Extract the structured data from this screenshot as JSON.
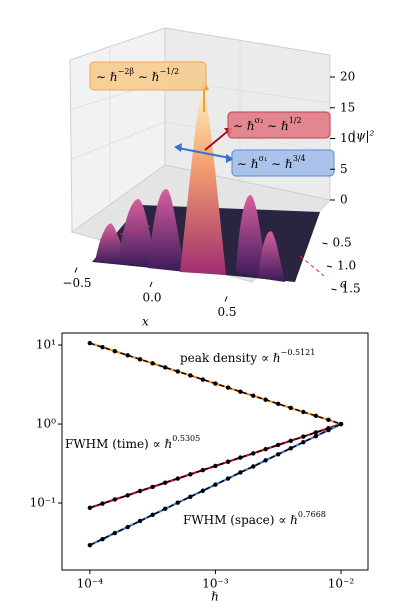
{
  "chart_data": [
    {
      "type": "surface3d",
      "xlabel": "x",
      "ylabel": "a",
      "zlabel": "|ψ|²",
      "xticks": [
        {
          "value": -0.5,
          "label": "−0.5"
        },
        {
          "value": 0,
          "label": "0.0"
        },
        0.5
      ],
      "yticks": [
        0.5,
        {
          "value": 1,
          "label": "1.0"
        },
        1.5
      ],
      "zticks": [
        0,
        5,
        10,
        15,
        20
      ],
      "annotations": [
        {
          "segments": [
            "∼ ℏ",
            "−2β",
            " ∼ ℏ",
            "−1/2"
          ],
          "color": "#f0a040"
        },
        {
          "segments": [
            "∼ ℏ",
            "σ₂",
            " ∼ ℏ",
            "1/2"
          ],
          "color": "#c8283c"
        },
        {
          "segments": [
            "∼ ℏ",
            "σ₁",
            " ∼ ℏ",
            "3/4"
          ],
          "color": "#4a7fd0"
        }
      ]
    },
    {
      "type": "line",
      "log_x": true,
      "log_y": true,
      "xlabel": "ℏ",
      "x": [
        0.0001,
        0.000126,
        0.000158,
        0.0002,
        0.000251,
        0.000316,
        0.000398,
        0.000501,
        0.000631,
        0.000794,
        0.001,
        0.00126,
        0.00158,
        0.002,
        0.00251,
        0.00316,
        0.00398,
        0.00501,
        0.00631,
        0.00794,
        0.01
      ],
      "xlim": [
        6e-05,
        0.0164
      ],
      "ylim": [
        0.0142,
        14.2
      ],
      "xticks": [
        {
          "value": 0.0001,
          "label": "10⁻⁴"
        },
        {
          "value": 0.001,
          "label": "10⁻³"
        },
        {
          "value": 0.01,
          "label": "10⁻²"
        }
      ],
      "yticks": [
        {
          "value": 0.1,
          "label": "10⁻¹"
        },
        {
          "value": 1,
          "label": "10⁰"
        },
        {
          "value": 10,
          "label": "10¹"
        }
      ],
      "marker_color": "#000000",
      "series": [
        {
          "color": "#f39c34",
          "values": [
            10.57,
            9.4,
            8.35,
            7.42,
            6.6,
            5.87,
            5.21,
            4.63,
            4.12,
            3.66,
            3.25,
            2.89,
            2.57,
            2.28,
            2.03,
            1.8,
            1.6,
            1.42,
            1.27,
            1.13,
            1.0
          ]
        },
        {
          "color": "#c8102e",
          "values": [
            0.0869,
            0.0983,
            0.111,
            0.125,
            0.142,
            0.16,
            0.181,
            0.204,
            0.231,
            0.261,
            0.295,
            0.333,
            0.376,
            0.425,
            0.481,
            0.543,
            0.614,
            0.693,
            0.783,
            0.885,
            1.0
          ]
        },
        {
          "color": "#4a7fd0",
          "values": [
            0.0293,
            0.0349,
            0.0417,
            0.0497,
            0.0593,
            0.0708,
            0.0844,
            0.101,
            0.12,
            0.143,
            0.171,
            0.204,
            0.244,
            0.29,
            0.347,
            0.414,
            0.493,
            0.589,
            0.702,
            0.838,
            1.0
          ]
        }
      ],
      "annotations": [
        {
          "segments": [
            "peak density ∝ ℏ",
            "−0.5121"
          ],
          "color": "#f39c34"
        },
        {
          "segments": [
            "FWHM (time) ∝ ℏ",
            "0.5305"
          ],
          "color": "#c8102e"
        },
        {
          "segments": [
            "FWHM (space) ∝ ℏ",
            "0.7668"
          ],
          "color": "#4a7fd0"
        }
      ]
    }
  ]
}
